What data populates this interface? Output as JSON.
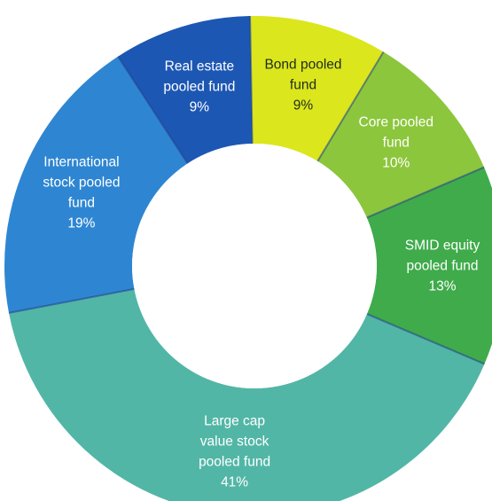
{
  "chart_data": {
    "type": "pie",
    "style": "donut",
    "unit": "%",
    "slices": [
      {
        "label_lines": [
          "Bond pooled",
          "fund"
        ],
        "value": 9,
        "value_label": "9%",
        "color": "#dbe61d",
        "label_dark": true
      },
      {
        "label_lines": [
          "Core pooled",
          "fund"
        ],
        "value": 10,
        "value_label": "10%",
        "color": "#8cc63c",
        "label_dark": false
      },
      {
        "label_lines": [
          "SMID equity",
          "pooled fund"
        ],
        "value": 13,
        "value_label": "13%",
        "color": "#3fab4b",
        "label_dark": false
      },
      {
        "label_lines": [
          "Large cap",
          "value stock",
          "pooled fund"
        ],
        "value": 41,
        "value_label": "41%",
        "color": "#52b6a6",
        "label_dark": false
      },
      {
        "label_lines": [
          "International",
          "stock pooled",
          "fund"
        ],
        "value": 19,
        "value_label": "19%",
        "color": "#2e86d2",
        "label_dark": false
      },
      {
        "label_lines": [
          "Real estate",
          "pooled fund"
        ],
        "value": 9,
        "value_label": "9%",
        "color": "#1d57b4",
        "label_dark": false
      }
    ]
  }
}
